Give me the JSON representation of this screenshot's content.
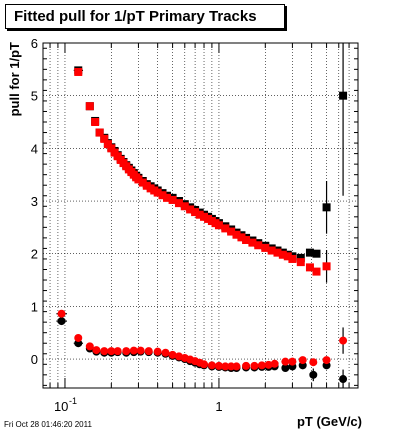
{
  "title": "Fitted pull for 1/pT  Primary Tracks",
  "footer": "Fri Oct 28 01:46:20 2011",
  "chart_data": {
    "type": "scatter",
    "title": "Fitted pull for 1/pT  Primary Tracks",
    "xlabel": "pT (GeV/c)",
    "ylabel": "pull for 1/pT",
    "xscale": "log",
    "xlim": [
      0.072,
      8.0
    ],
    "ylim": [
      -0.55,
      6.0
    ],
    "grid": true,
    "x_ticks": [
      {
        "value": 0.1,
        "base": "10",
        "exp": "-1"
      },
      {
        "value": 1,
        "base": "1",
        "exp": ""
      }
    ],
    "y_ticks": [
      0,
      1,
      2,
      3,
      4,
      5,
      6
    ],
    "series": [
      {
        "color": "#000000",
        "marker": "square",
        "values": [
          [
            0.122,
            5.48
          ],
          [
            0.145,
            4.8
          ],
          [
            0.157,
            4.52
          ],
          [
            0.168,
            4.3
          ],
          [
            0.18,
            4.2
          ],
          [
            0.19,
            4.1
          ],
          [
            0.2,
            4.02
          ],
          [
            0.21,
            3.95
          ],
          [
            0.22,
            3.87
          ],
          [
            0.23,
            3.8
          ],
          [
            0.24,
            3.74
          ],
          [
            0.25,
            3.68
          ],
          [
            0.26,
            3.63
          ],
          [
            0.27,
            3.58
          ],
          [
            0.28,
            3.53
          ],
          [
            0.29,
            3.48
          ],
          [
            0.3,
            3.44
          ],
          [
            0.32,
            3.38
          ],
          [
            0.34,
            3.32
          ],
          [
            0.36,
            3.28
          ],
          [
            0.38,
            3.24
          ],
          [
            0.4,
            3.2
          ],
          [
            0.43,
            3.15
          ],
          [
            0.46,
            3.1
          ],
          [
            0.5,
            3.06
          ],
          [
            0.55,
            3.0
          ],
          [
            0.6,
            2.94
          ],
          [
            0.65,
            2.88
          ],
          [
            0.7,
            2.83
          ],
          [
            0.75,
            2.78
          ],
          [
            0.8,
            2.74
          ],
          [
            0.85,
            2.7
          ],
          [
            0.9,
            2.66
          ],
          [
            0.95,
            2.62
          ],
          [
            1.0,
            2.58
          ],
          [
            1.1,
            2.52
          ],
          [
            1.2,
            2.46
          ],
          [
            1.3,
            2.4
          ],
          [
            1.4,
            2.35
          ],
          [
            1.5,
            2.3
          ],
          [
            1.65,
            2.25
          ],
          [
            1.8,
            2.2
          ],
          [
            2.0,
            2.15
          ],
          [
            2.2,
            2.1
          ],
          [
            2.4,
            2.06
          ],
          [
            2.6,
            2.02
          ],
          [
            2.8,
            1.98
          ],
          [
            3.0,
            1.95
          ],
          [
            3.4,
            1.92
          ],
          [
            3.9,
            2.02
          ],
          [
            4.3,
            2.0
          ],
          [
            5.0,
            2.88
          ],
          [
            6.4,
            5.0
          ]
        ]
      },
      {
        "color": "#ff0000",
        "marker": "square",
        "values": [
          [
            0.122,
            5.45
          ],
          [
            0.145,
            4.8
          ],
          [
            0.157,
            4.5
          ],
          [
            0.168,
            4.3
          ],
          [
            0.18,
            4.18
          ],
          [
            0.19,
            4.08
          ],
          [
            0.2,
            4.0
          ],
          [
            0.21,
            3.92
          ],
          [
            0.22,
            3.85
          ],
          [
            0.23,
            3.78
          ],
          [
            0.24,
            3.72
          ],
          [
            0.25,
            3.66
          ],
          [
            0.26,
            3.6
          ],
          [
            0.27,
            3.55
          ],
          [
            0.28,
            3.5
          ],
          [
            0.29,
            3.45
          ],
          [
            0.3,
            3.41
          ],
          [
            0.32,
            3.35
          ],
          [
            0.34,
            3.29
          ],
          [
            0.36,
            3.24
          ],
          [
            0.38,
            3.2
          ],
          [
            0.4,
            3.16
          ],
          [
            0.43,
            3.11
          ],
          [
            0.46,
            3.06
          ],
          [
            0.5,
            3.02
          ],
          [
            0.55,
            2.96
          ],
          [
            0.6,
            2.9
          ],
          [
            0.65,
            2.84
          ],
          [
            0.7,
            2.79
          ],
          [
            0.75,
            2.74
          ],
          [
            0.8,
            2.7
          ],
          [
            0.85,
            2.66
          ],
          [
            0.9,
            2.62
          ],
          [
            0.95,
            2.58
          ],
          [
            1.0,
            2.54
          ],
          [
            1.1,
            2.48
          ],
          [
            1.2,
            2.42
          ],
          [
            1.3,
            2.36
          ],
          [
            1.4,
            2.31
          ],
          [
            1.5,
            2.26
          ],
          [
            1.65,
            2.21
          ],
          [
            1.8,
            2.16
          ],
          [
            2.0,
            2.11
          ],
          [
            2.2,
            2.06
          ],
          [
            2.4,
            2.02
          ],
          [
            2.6,
            1.98
          ],
          [
            2.8,
            1.95
          ],
          [
            3.0,
            1.9
          ],
          [
            3.4,
            1.84
          ],
          [
            3.9,
            1.74
          ],
          [
            4.3,
            1.66
          ],
          [
            5.0,
            1.76
          ]
        ]
      },
      {
        "color": "#000000",
        "marker": "circle",
        "values": [
          [
            0.095,
            0.72
          ],
          [
            0.122,
            0.3
          ],
          [
            0.145,
            0.2
          ],
          [
            0.16,
            0.14
          ],
          [
            0.18,
            0.12
          ],
          [
            0.2,
            0.12
          ],
          [
            0.22,
            0.13
          ],
          [
            0.25,
            0.12
          ],
          [
            0.28,
            0.13
          ],
          [
            0.31,
            0.14
          ],
          [
            0.35,
            0.13
          ],
          [
            0.4,
            0.12
          ],
          [
            0.45,
            0.1
          ],
          [
            0.5,
            0.06
          ],
          [
            0.55,
            0.03
          ],
          [
            0.6,
            0.0
          ],
          [
            0.65,
            -0.04
          ],
          [
            0.7,
            -0.07
          ],
          [
            0.75,
            -0.1
          ],
          [
            0.8,
            -0.12
          ],
          [
            0.9,
            -0.14
          ],
          [
            1.0,
            -0.15
          ],
          [
            1.1,
            -0.16
          ],
          [
            1.2,
            -0.17
          ],
          [
            1.3,
            -0.17
          ],
          [
            1.5,
            -0.16
          ],
          [
            1.7,
            -0.16
          ],
          [
            1.9,
            -0.15
          ],
          [
            2.1,
            -0.15
          ],
          [
            2.3,
            -0.14
          ],
          [
            2.7,
            -0.17
          ],
          [
            3.0,
            -0.14
          ],
          [
            3.5,
            -0.12
          ],
          [
            4.1,
            -0.3
          ],
          [
            5.0,
            -0.12
          ],
          [
            6.4,
            -0.38
          ]
        ]
      },
      {
        "color": "#ff0000",
        "marker": "circle",
        "values": [
          [
            0.095,
            0.86
          ],
          [
            0.122,
            0.4
          ],
          [
            0.145,
            0.24
          ],
          [
            0.16,
            0.17
          ],
          [
            0.18,
            0.15
          ],
          [
            0.2,
            0.15
          ],
          [
            0.22,
            0.15
          ],
          [
            0.25,
            0.15
          ],
          [
            0.28,
            0.16
          ],
          [
            0.31,
            0.16
          ],
          [
            0.35,
            0.15
          ],
          [
            0.4,
            0.14
          ],
          [
            0.45,
            0.12
          ],
          [
            0.5,
            0.08
          ],
          [
            0.55,
            0.05
          ],
          [
            0.6,
            0.02
          ],
          [
            0.65,
            -0.01
          ],
          [
            0.7,
            -0.04
          ],
          [
            0.75,
            -0.07
          ],
          [
            0.8,
            -0.1
          ],
          [
            0.9,
            -0.12
          ],
          [
            1.0,
            -0.13
          ],
          [
            1.1,
            -0.14
          ],
          [
            1.2,
            -0.14
          ],
          [
            1.3,
            -0.14
          ],
          [
            1.5,
            -0.13
          ],
          [
            1.7,
            -0.13
          ],
          [
            1.9,
            -0.12
          ],
          [
            2.1,
            -0.11
          ],
          [
            2.3,
            -0.09
          ],
          [
            2.7,
            -0.05
          ],
          [
            3.0,
            -0.05
          ],
          [
            3.5,
            -0.02
          ],
          [
            4.1,
            -0.06
          ],
          [
            5.0,
            -0.02
          ],
          [
            6.4,
            0.35
          ]
        ]
      }
    ],
    "error_bars": [
      {
        "x": 0.095,
        "y": 0.86,
        "dx": [
          0.088,
          0.103
        ]
      },
      {
        "x": 0.095,
        "y": 0.72,
        "dx": [
          0.088,
          0.103
        ]
      },
      {
        "x": 0.122,
        "y": 5.48,
        "dx": [
          0.114,
          0.131
        ]
      },
      {
        "x": 0.122,
        "y": 0.3,
        "dx": [
          0.114,
          0.131
        ]
      },
      {
        "x": 5.0,
        "y": 2.88,
        "dy": [
          2.38,
          3.38
        ]
      },
      {
        "x": 5.0,
        "y": 1.76,
        "dy": [
          1.45,
          2.07
        ]
      },
      {
        "x": 6.4,
        "y": 5.0,
        "dy": [
          3.1,
          6.0
        ]
      },
      {
        "x": 6.4,
        "y": 0.35,
        "dy": [
          0.1,
          0.6
        ]
      },
      {
        "x": 6.4,
        "y": -0.38,
        "dy": [
          -0.55,
          -0.2
        ]
      },
      {
        "x": 4.1,
        "y": -0.3,
        "dy": [
          -0.42,
          -0.18
        ]
      }
    ]
  }
}
